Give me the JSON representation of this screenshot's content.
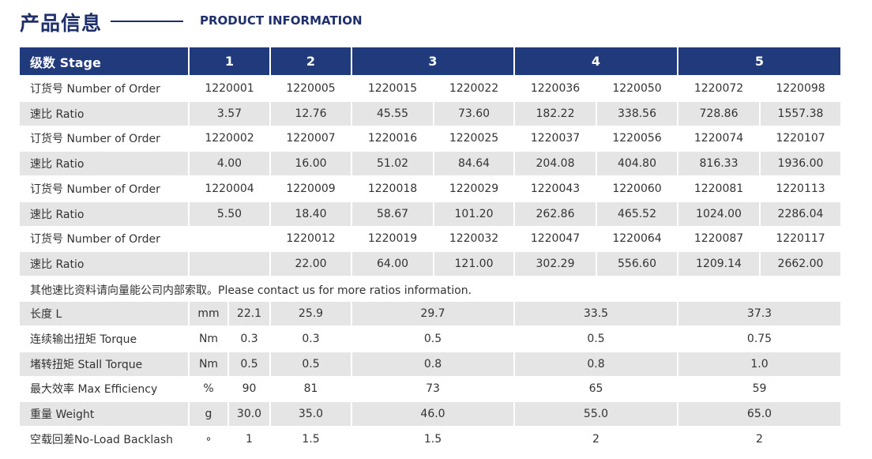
{
  "header": {
    "title_cn": "产品信息",
    "title_en": "PRODUCT INFORMATION"
  },
  "stage_header": {
    "label": "级数 Stage",
    "stages": [
      "1",
      "2",
      "3",
      "4",
      "5"
    ]
  },
  "ratio_rows": [
    {
      "label": "订货号 Number of Order",
      "values": [
        "1220001",
        "1220005",
        "1220015",
        "1220022",
        "1220036",
        "1220050",
        "1220072",
        "1220098"
      ]
    },
    {
      "label": "速比 Ratio",
      "values": [
        "3.57",
        "12.76",
        "45.55",
        "73.60",
        "182.22",
        "338.56",
        "728.86",
        "1557.38"
      ]
    },
    {
      "label": "订货号 Number of Order",
      "values": [
        "1220002",
        "1220007",
        "1220016",
        "1220025",
        "1220037",
        "1220056",
        "1220074",
        "1220107"
      ]
    },
    {
      "label": "速比 Ratio",
      "values": [
        "4.00",
        "16.00",
        "51.02",
        "84.64",
        "204.08",
        "404.80",
        "816.33",
        "1936.00"
      ]
    },
    {
      "label": "订货号 Number of Order",
      "values": [
        "1220004",
        "1220009",
        "1220018",
        "1220029",
        "1220043",
        "1220060",
        "1220081",
        "1220113"
      ]
    },
    {
      "label": "速比 Ratio",
      "values": [
        "5.50",
        "18.40",
        "58.67",
        "101.20",
        "262.86",
        "465.52",
        "1024.00",
        "2286.04"
      ]
    },
    {
      "label": "订货号 Number of Order",
      "values": [
        "",
        "1220012",
        "1220019",
        "1220032",
        "1220047",
        "1220064",
        "1220087",
        "1220117"
      ]
    },
    {
      "label": "速比 Ratio",
      "values": [
        "",
        "22.00",
        "64.00",
        "121.00",
        "302.29",
        "556.60",
        "1209.14",
        "2662.00"
      ]
    }
  ],
  "note": "其他速比资料请向量能公司内部索取。Please contact us for more ratios information.",
  "spec_rows": [
    {
      "label": "长度 L",
      "unit": "mm",
      "values": [
        "22.1",
        "25.9",
        "29.7",
        "33.5",
        "37.3"
      ]
    },
    {
      "label": "连续输出扭矩 Torque",
      "unit": "Nm",
      "values": [
        "0.3",
        "0.3",
        "0.5",
        "0.5",
        "0.75"
      ]
    },
    {
      "label": "堵转扭矩 Stall Torque",
      "unit": "Nm",
      "values": [
        "0.5",
        "0.5",
        "0.8",
        "0.8",
        "1.0"
      ]
    },
    {
      "label": "最大效率 Max Efficiency",
      "unit": "%",
      "values": [
        "90",
        "81",
        "73",
        "65",
        "59"
      ]
    },
    {
      "label": "重量 Weight",
      "unit": "g",
      "values": [
        "30.0",
        "35.0",
        "46.0",
        "55.0",
        "65.0"
      ]
    },
    {
      "label": "空载回差No-Load Backlash",
      "unit": "∘",
      "values": [
        "1",
        "1.5",
        "1.5",
        "2",
        "2"
      ]
    }
  ],
  "colors": {
    "header_bg": "#213a7c",
    "row_gray": "#e5e5e5",
    "title": "#1e2f6b"
  }
}
